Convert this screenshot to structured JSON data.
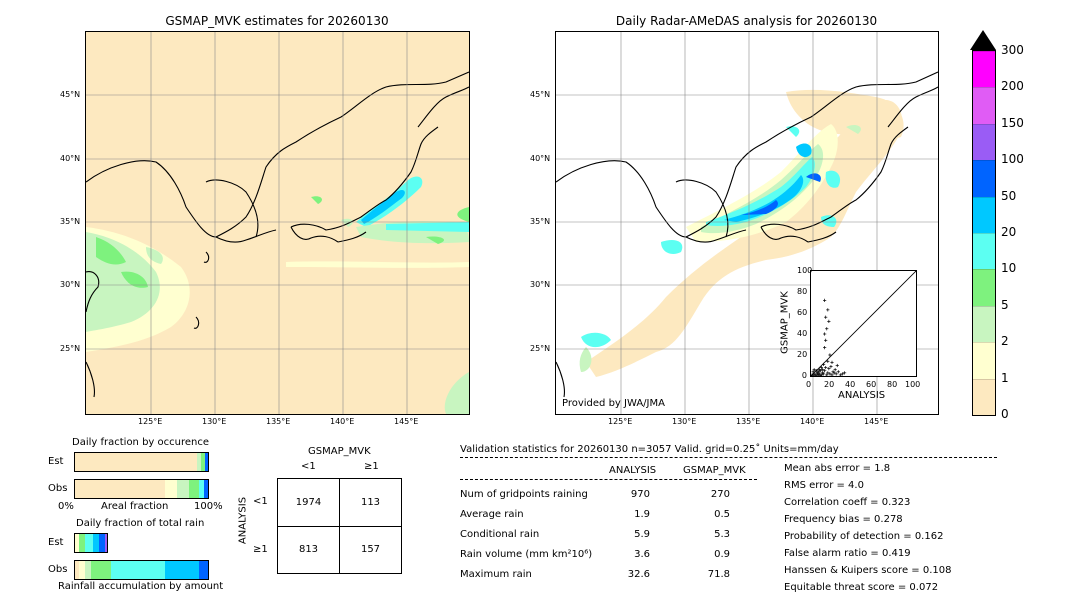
{
  "left_map": {
    "title": "GSMAP_MVK estimates for 20260130",
    "lat_labels": [
      "45°N",
      "40°N",
      "35°N",
      "30°N",
      "25°N"
    ],
    "lon_labels": [
      "125°E",
      "130°E",
      "135°E",
      "140°E",
      "145°E"
    ]
  },
  "right_map": {
    "title": "Daily Radar-AMeDAS analysis for 20260130",
    "lat_labels": [
      "45°N",
      "40°N",
      "35°N",
      "30°N",
      "25°N"
    ],
    "lon_labels": [
      "125°E",
      "130°E",
      "135°E",
      "140°E",
      "145°E"
    ],
    "credit": "Provided by JWA/JMA"
  },
  "colorbar": {
    "ticks": [
      "0",
      "1",
      "2",
      "5",
      "10",
      "20",
      "50",
      "100",
      "150",
      "200",
      "300"
    ],
    "colors": [
      "#fde9c0",
      "#ffffd0",
      "#c8f5c0",
      "#7ef27e",
      "#5cfff2",
      "#00c8ff",
      "#0064ff",
      "#9a5cf5",
      "#e05cf5",
      "#ff00ff",
      "#c8963c"
    ]
  },
  "scatter": {
    "xlabel": "ANALYSIS",
    "ylabel": "GSMAP_MVK",
    "ticks": [
      "0",
      "20",
      "40",
      "60",
      "80",
      "100"
    ]
  },
  "fraction_occurrence": {
    "title": "Daily fraction by occurence",
    "row_labels": [
      "Est",
      "Obs"
    ],
    "axis_left": "0%",
    "axis_mid": "Areal fraction",
    "axis_right": "100%"
  },
  "fraction_rain": {
    "title": "Daily fraction of total rain",
    "row_labels": [
      "Est",
      "Obs"
    ],
    "axis_label": "Rainfall accumulation by amount"
  },
  "contingency": {
    "col_header": "GSMAP_MVK",
    "col_labels": [
      "<1",
      "≥1"
    ],
    "row_header": "ANALYSIS",
    "row_labels": [
      "<1",
      "≥1"
    ],
    "cells": [
      [
        "1974",
        "113"
      ],
      [
        "813",
        "157"
      ]
    ]
  },
  "validation": {
    "header": "Validation statistics for 20260130  n=3057 Valid. grid=0.25˚ Units=mm/day",
    "col_analysis": "ANALYSIS",
    "col_gsmap": "GSMAP_MVK",
    "rows": [
      {
        "label": "Num of gridpoints raining",
        "analysis": "970",
        "gsmap": "270"
      },
      {
        "label": "Average rain",
        "analysis": "1.9",
        "gsmap": "0.5"
      },
      {
        "label": "Conditional rain",
        "analysis": "5.9",
        "gsmap": "5.3"
      },
      {
        "label": "Rain volume (mm km²10⁶)",
        "analysis": "3.6",
        "gsmap": "0.9"
      },
      {
        "label": "Maximum rain",
        "analysis": "32.6",
        "gsmap": "71.8"
      }
    ],
    "scores": [
      "Mean abs error =    1.8",
      "RMS error =    4.0",
      "Correlation coeff =  0.323",
      "Frequency bias =  0.278",
      "Probability of detection =  0.162",
      "False alarm ratio =  0.419",
      "Hanssen & Kuipers score =  0.108",
      "Equitable threat score =  0.072"
    ]
  },
  "chart_data": {
    "type": "scatter",
    "xlabel": "ANALYSIS",
    "ylabel": "GSMAP_MVK",
    "xlim": [
      0,
      100
    ],
    "ylim": [
      0,
      100
    ],
    "points": [
      [
        1,
        1
      ],
      [
        2,
        0
      ],
      [
        3,
        2
      ],
      [
        4,
        1
      ],
      [
        5,
        0
      ],
      [
        6,
        3
      ],
      [
        7,
        1
      ],
      [
        8,
        2
      ],
      [
        9,
        0
      ],
      [
        10,
        1
      ],
      [
        2,
        4
      ],
      [
        3,
        6
      ],
      [
        5,
        5
      ],
      [
        6,
        2
      ],
      [
        7,
        4
      ],
      [
        8,
        6
      ],
      [
        11,
        3
      ],
      [
        12,
        2
      ],
      [
        13,
        5
      ],
      [
        15,
        1
      ],
      [
        16,
        3
      ],
      [
        18,
        2
      ],
      [
        20,
        1
      ],
      [
        22,
        3
      ],
      [
        24,
        2
      ],
      [
        26,
        4
      ],
      [
        28,
        1
      ],
      [
        30,
        2
      ],
      [
        32,
        3
      ],
      [
        14,
        8
      ],
      [
        12,
        11
      ],
      [
        16,
        14
      ],
      [
        18,
        20
      ],
      [
        13,
        27
      ],
      [
        14,
        34
      ],
      [
        13,
        40
      ],
      [
        15,
        45
      ],
      [
        14,
        56
      ],
      [
        17,
        52
      ],
      [
        16,
        63
      ],
      [
        13,
        72
      ],
      [
        20,
        13
      ],
      [
        25,
        10
      ],
      [
        10,
        8
      ],
      [
        9,
        5
      ],
      [
        11,
        6
      ],
      [
        17,
        7
      ],
      [
        19,
        9
      ],
      [
        21,
        4
      ],
      [
        23,
        6
      ]
    ]
  }
}
